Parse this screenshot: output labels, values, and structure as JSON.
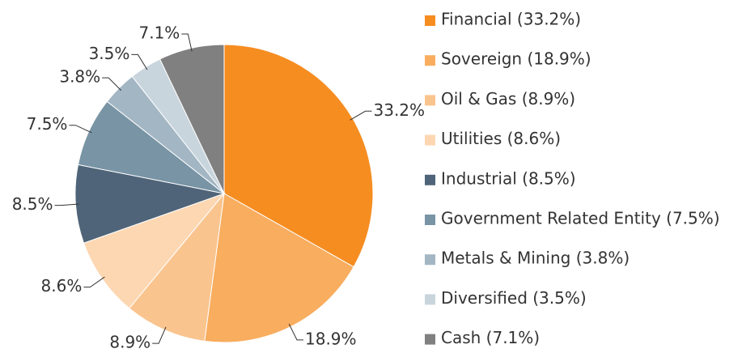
{
  "chart_data": {
    "type": "pie",
    "categories": [
      "Financial (33.2%)",
      "Sovereign (18.9%)",
      "Oil & Gas (8.9%)",
      "Utilities (8.6%)",
      "Industrial (8.5%)",
      "Government Related Entity (7.5%)",
      "Metals & Mining (3.8%)",
      "Diversified (3.5%)",
      "Cash (7.1%)"
    ],
    "values": [
      33.2,
      18.9,
      8.9,
      8.6,
      8.5,
      7.5,
      3.8,
      3.5,
      7.1
    ],
    "value_labels": [
      "33.2%",
      "18.9%",
      "8.9%",
      "8.6%",
      "8.5%",
      "7.5%",
      "3.8%",
      "3.5%",
      "7.1%"
    ],
    "colors": [
      "#f68d21",
      "#f8ad5f",
      "#fac48e",
      "#fdd7b2",
      "#4f6478",
      "#7894a5",
      "#a3b6c3",
      "#c9d5dd",
      "#808080"
    ],
    "legend": "right"
  }
}
